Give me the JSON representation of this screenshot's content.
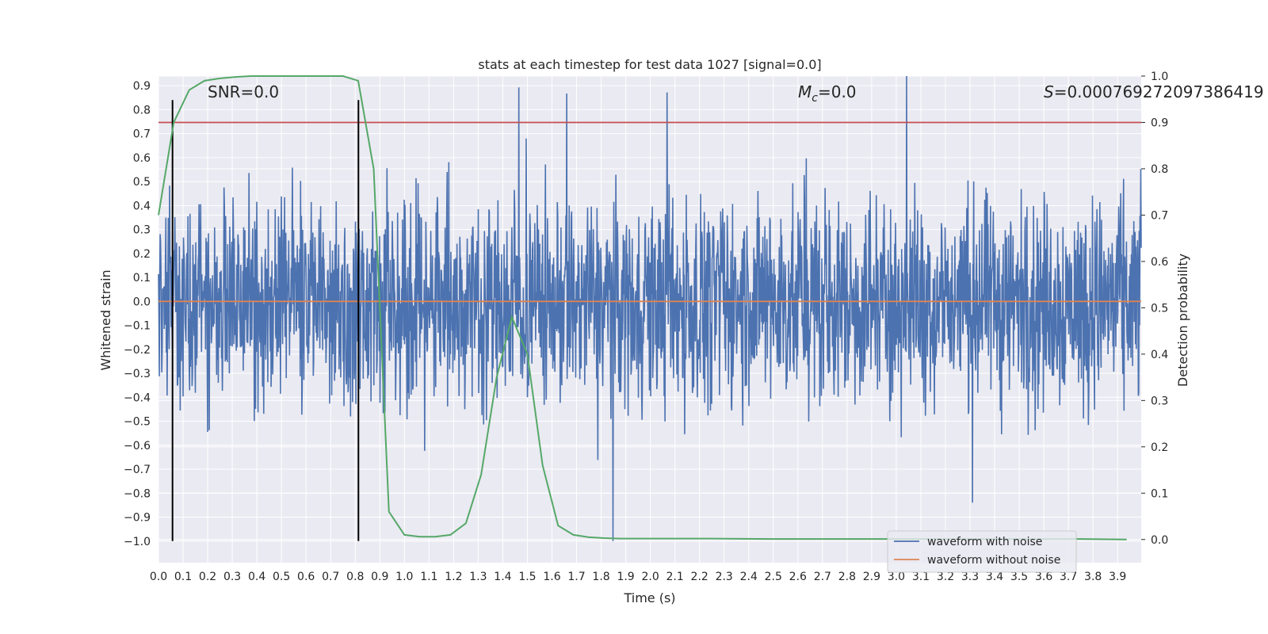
{
  "chart_data": {
    "type": "line",
    "title": "stats at each timestep for test data 1027 [signal=0.0]",
    "xlabel": "Time (s)",
    "ylabel": "Whitened strain",
    "y2label": "Detection probability",
    "xlim": [
      0.0,
      3.996
    ],
    "ylim": [
      -1.09,
      0.94
    ],
    "y2lim": [
      -0.05,
      1.0
    ],
    "x_ticks": [
      "0.0",
      "0.1",
      "0.2",
      "0.3",
      "0.4",
      "0.5",
      "0.6",
      "0.7",
      "0.8",
      "0.9",
      "1.0",
      "1.1",
      "1.2",
      "1.3",
      "1.4",
      "1.5",
      "1.6",
      "1.7",
      "1.8",
      "1.9",
      "2.0",
      "2.1",
      "2.2",
      "2.3",
      "2.4",
      "2.5",
      "2.6",
      "2.7",
      "2.8",
      "2.9",
      "3.0",
      "3.1",
      "3.2",
      "3.3",
      "3.4",
      "3.5",
      "3.6",
      "3.7",
      "3.8",
      "3.9"
    ],
    "y_ticks": [
      "0.9",
      "0.8",
      "0.7",
      "0.6",
      "0.5",
      "0.4",
      "0.3",
      "0.2",
      "0.1",
      "0.0",
      "−0.1",
      "−0.2",
      "−0.3",
      "−0.4",
      "−0.5",
      "−0.6",
      "−0.7",
      "−0.8",
      "−0.9",
      "−1.0"
    ],
    "y2_ticks": [
      "1.0",
      "0.9",
      "0.8",
      "0.7",
      "0.6",
      "0.5",
      "0.4",
      "0.3",
      "0.2",
      "0.1",
      "0.0"
    ],
    "annotations": {
      "snr": "SNR=0.0",
      "mc_symbol": "M",
      "mc_sub": "c",
      "mc_value": "=0.0",
      "s_symbol": "S",
      "s_value": "=0.000769272097386419"
    },
    "legend": {
      "position": "lower right",
      "entries": [
        "waveform with noise",
        "waveform without noise"
      ]
    },
    "vertical_lines_x": [
      0.057,
      0.813
    ],
    "threshold_probability": 0.9,
    "noise_amplitude_approx": 0.5,
    "detection_probability": {
      "x": [
        0.0,
        0.062,
        0.125,
        0.187,
        0.25,
        0.312,
        0.375,
        0.437,
        0.5,
        0.562,
        0.625,
        0.687,
        0.75,
        0.812,
        0.875,
        0.937,
        1.0,
        1.062,
        1.125,
        1.187,
        1.25,
        1.312,
        1.375,
        1.437,
        1.5,
        1.562,
        1.625,
        1.687,
        1.75,
        1.812,
        1.875,
        2.0,
        2.25,
        2.5,
        2.75,
        3.0,
        3.25,
        3.5,
        3.75,
        3.937
      ],
      "y": [
        0.7,
        0.9,
        0.97,
        0.99,
        0.995,
        0.998,
        1.0,
        1.0,
        1.0,
        1.0,
        1.0,
        1.0,
        1.0,
        0.99,
        0.8,
        0.06,
        0.01,
        0.006,
        0.006,
        0.01,
        0.035,
        0.14,
        0.35,
        0.48,
        0.4,
        0.16,
        0.03,
        0.01,
        0.005,
        0.003,
        0.002,
        0.002,
        0.002,
        0.001,
        0.001,
        0.001,
        0.001,
        0.001,
        0.001,
        0.0
      ]
    },
    "clean_waveform": {
      "x": [
        0.0,
        3.996
      ],
      "y": [
        0.0,
        0.0
      ]
    }
  },
  "colors": {
    "noise": "#4c72b0",
    "clean": "#dd8452",
    "probability": "#55a868",
    "threshold": "#c44e52",
    "plot_bg": "#eaeaf2",
    "grid": "#ffffff",
    "vline": "#000000"
  }
}
